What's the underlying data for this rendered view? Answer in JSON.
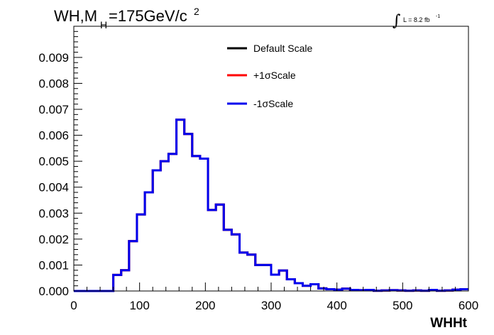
{
  "header": {
    "title_wh": "WH,M",
    "title_sub": "H",
    "title_mass": "=175GeV/c",
    "title_sup": "2",
    "lumi_text": "L = 8.2 fb",
    "lumi_sup": "-1"
  },
  "chart_data": {
    "type": "histogram",
    "xlabel": "WHHt",
    "ylabel": "",
    "xlim": [
      0,
      600
    ],
    "ylim": [
      0,
      0.0102
    ],
    "xticks": [
      "0",
      "100",
      "200",
      "300",
      "400",
      "500",
      "600"
    ],
    "yticks": [
      "0.000",
      "0.001",
      "0.002",
      "0.003",
      "0.004",
      "0.005",
      "0.006",
      "0.007",
      "0.008",
      "0.009"
    ],
    "bin_width": 12,
    "legend_position": "top-center",
    "series": [
      {
        "name": "Default Scale",
        "color": "#000000",
        "values": [
          0,
          0,
          0,
          0,
          0,
          0.00062,
          0.0008,
          0.00192,
          0.00295,
          0.0038,
          0.00465,
          0.005,
          0.00528,
          0.0066,
          0.00605,
          0.0052,
          0.0051,
          0.00312,
          0.00333,
          0.00236,
          0.00218,
          0.00148,
          0.0014,
          0.001,
          0.001,
          0.00063,
          0.00079,
          0.00045,
          0.0003,
          0.0002,
          0.00026,
          0.0001,
          7e-05,
          5e-05,
          9e-05,
          4e-05,
          3e-05,
          4e-05,
          1e-05,
          2e-05,
          3e-05,
          2e-05,
          1e-05,
          2e-05,
          1e-05,
          4e-05,
          1e-05,
          2e-05,
          5e-05,
          7e-05
        ]
      },
      {
        "name": "+1σScale",
        "color": "#ff0000",
        "values": [
          0,
          0,
          0,
          0,
          0,
          0.00062,
          0.0008,
          0.00192,
          0.00295,
          0.0038,
          0.00465,
          0.005,
          0.00528,
          0.0066,
          0.00605,
          0.0052,
          0.0051,
          0.00312,
          0.00333,
          0.00236,
          0.00218,
          0.00148,
          0.0014,
          0.001,
          0.001,
          0.00063,
          0.00079,
          0.00045,
          0.0003,
          0.0002,
          0.00026,
          0.0001,
          7e-05,
          5e-05,
          9e-05,
          4e-05,
          3e-05,
          4e-05,
          1e-05,
          2e-05,
          3e-05,
          2e-05,
          1e-05,
          2e-05,
          1e-05,
          4e-05,
          1e-05,
          2e-05,
          5e-05,
          7e-05
        ]
      },
      {
        "name": "-1σScale",
        "color": "#0000ee",
        "values": [
          0,
          0,
          0,
          0,
          0,
          0.00062,
          0.0008,
          0.00192,
          0.00295,
          0.0038,
          0.00465,
          0.005,
          0.00528,
          0.0066,
          0.00605,
          0.0052,
          0.0051,
          0.00312,
          0.00333,
          0.00236,
          0.00218,
          0.00148,
          0.0014,
          0.001,
          0.001,
          0.00063,
          0.00079,
          0.00045,
          0.0003,
          0.0002,
          0.00026,
          0.0001,
          7e-05,
          5e-05,
          9e-05,
          4e-05,
          3e-05,
          4e-05,
          1e-05,
          2e-05,
          3e-05,
          2e-05,
          1e-05,
          2e-05,
          1e-05,
          4e-05,
          1e-05,
          2e-05,
          5e-05,
          7e-05
        ]
      }
    ]
  }
}
